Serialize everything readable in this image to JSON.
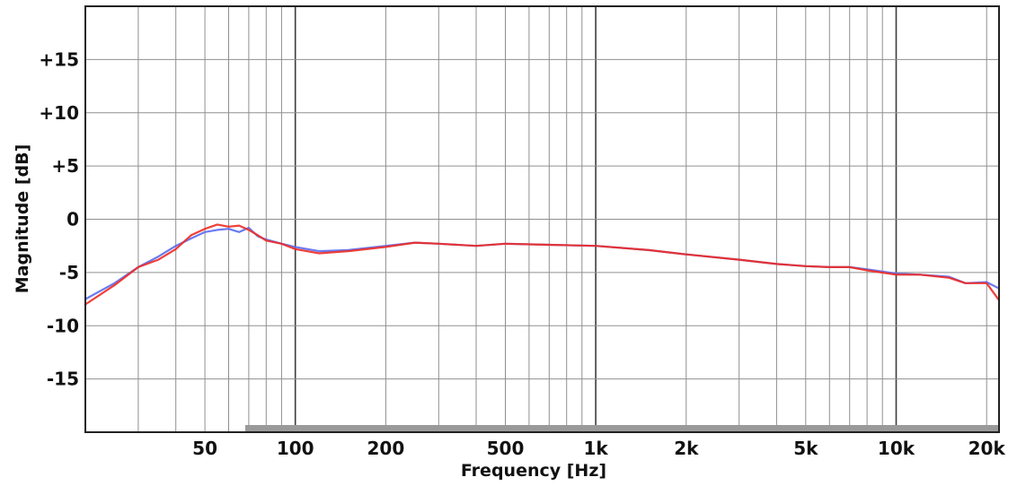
{
  "chart_data": {
    "type": "line",
    "title": "",
    "xlabel": "Frequency [Hz]",
    "ylabel": "Magnitude [dB]",
    "xscale": "log",
    "xlim": [
      20,
      22000
    ],
    "ylim": [
      -20,
      20
    ],
    "grid": true,
    "legend": "none",
    "x_ticks": [
      {
        "value": 50,
        "label": "50"
      },
      {
        "value": 100,
        "label": "100"
      },
      {
        "value": 200,
        "label": "200"
      },
      {
        "value": 500,
        "label": "500"
      },
      {
        "value": 1000,
        "label": "1k"
      },
      {
        "value": 2000,
        "label": "2k"
      },
      {
        "value": 5000,
        "label": "5k"
      },
      {
        "value": 10000,
        "label": "10k"
      },
      {
        "value": 20000,
        "label": "20k"
      }
    ],
    "y_ticks": [
      {
        "value": 15,
        "label": "+15"
      },
      {
        "value": 10,
        "label": "+10"
      },
      {
        "value": 5,
        "label": "+5"
      },
      {
        "value": 0,
        "label": "0"
      },
      {
        "value": -5,
        "label": "-5"
      },
      {
        "value": -10,
        "label": "-10"
      },
      {
        "value": -15,
        "label": "-15"
      }
    ],
    "series": [
      {
        "color": "#5a6cf0",
        "x": [
          20,
          25,
          30,
          35,
          40,
          45,
          50,
          55,
          60,
          65,
          70,
          75,
          80,
          90,
          100,
          120,
          150,
          200,
          250,
          300,
          400,
          500,
          700,
          1000,
          1500,
          2000,
          3000,
          4000,
          5000,
          6000,
          7000,
          8000,
          10000,
          12000,
          15000,
          17000,
          20000,
          22000
        ],
        "values": [
          -7.5,
          -6.0,
          -4.5,
          -3.5,
          -2.5,
          -1.8,
          -1.2,
          -1.0,
          -0.9,
          -1.2,
          -0.8,
          -1.6,
          -1.9,
          -2.3,
          -2.6,
          -3.0,
          -2.9,
          -2.5,
          -2.2,
          -2.3,
          -2.5,
          -2.3,
          -2.4,
          -2.5,
          -2.9,
          -3.3,
          -3.8,
          -4.2,
          -4.4,
          -4.5,
          -4.5,
          -4.7,
          -5.1,
          -5.2,
          -5.4,
          -6.0,
          -5.9,
          -6.5
        ]
      },
      {
        "color": "#ee2a24",
        "x": [
          20,
          25,
          30,
          35,
          40,
          45,
          50,
          55,
          60,
          65,
          70,
          75,
          80,
          90,
          100,
          120,
          150,
          200,
          250,
          300,
          400,
          500,
          700,
          1000,
          1500,
          2000,
          3000,
          4000,
          5000,
          6000,
          7000,
          8000,
          10000,
          12000,
          15000,
          17000,
          20000,
          22000
        ],
        "values": [
          -8.0,
          -6.2,
          -4.5,
          -3.8,
          -2.8,
          -1.5,
          -0.9,
          -0.5,
          -0.7,
          -0.6,
          -1.0,
          -1.5,
          -2.0,
          -2.3,
          -2.8,
          -3.2,
          -3.0,
          -2.6,
          -2.2,
          -2.3,
          -2.5,
          -2.3,
          -2.4,
          -2.5,
          -2.9,
          -3.3,
          -3.8,
          -4.2,
          -4.4,
          -4.5,
          -4.5,
          -4.8,
          -5.2,
          -5.2,
          -5.5,
          -6.0,
          -6.0,
          -7.6
        ]
      }
    ]
  }
}
